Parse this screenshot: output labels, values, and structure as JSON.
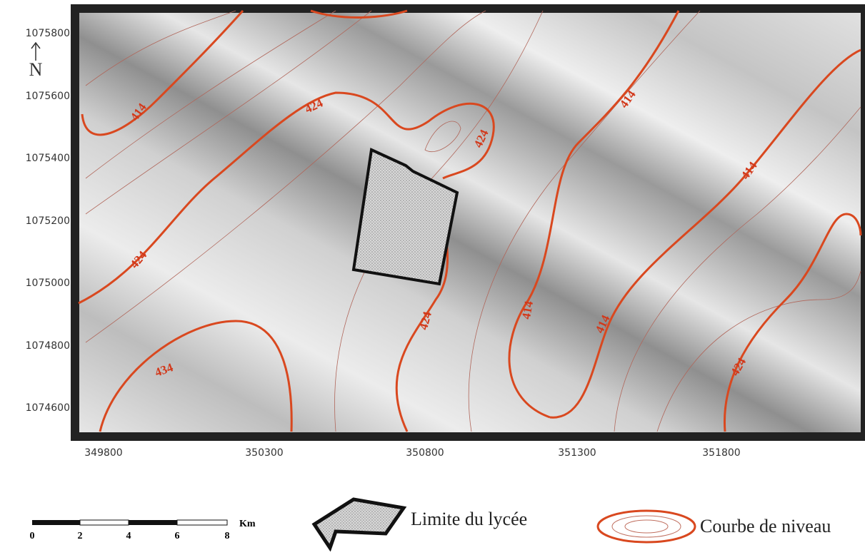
{
  "map": {
    "y_ticks": [
      1075800,
      1075600,
      1075400,
      1075200,
      1075000,
      1074800,
      1074600
    ],
    "x_ticks": [
      349800,
      350300,
      350800,
      351300,
      351800
    ],
    "north": "N",
    "contour_labels": [
      "414",
      "424",
      "424",
      "414",
      "414",
      "424",
      "434",
      "424",
      "414",
      "414",
      "424"
    ],
    "scale_labels": [
      "0",
      "2",
      "4",
      "6",
      "8"
    ],
    "scale_unit": "Km",
    "legend": {
      "school": "Limite du lycée",
      "contour": "Courbe de niveau"
    }
  }
}
